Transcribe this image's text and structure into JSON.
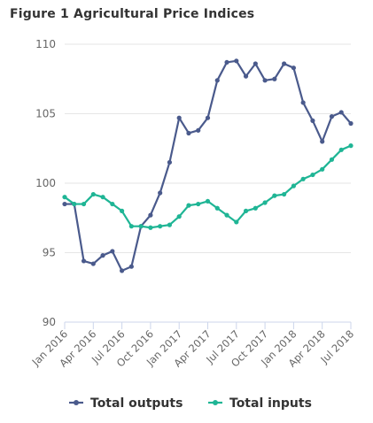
{
  "chart_data": {
    "type": "line",
    "title": "Figure 1 Agricultural Price Indices",
    "xlabel": "",
    "ylabel": "",
    "ylim": [
      90,
      110
    ],
    "yticks": [
      90,
      95,
      100,
      105,
      110
    ],
    "x": [
      "Jan 2016",
      "Feb 2016",
      "Mar 2016",
      "Apr 2016",
      "May 2016",
      "Jun 2016",
      "Jul 2016",
      "Aug 2016",
      "Sep 2016",
      "Oct 2016",
      "Nov 2016",
      "Dec 2016",
      "Jan 2017",
      "Feb 2017",
      "Mar 2017",
      "Apr 2017",
      "May 2017",
      "Jun 2017",
      "Jul 2017",
      "Aug 2017",
      "Sep 2017",
      "Oct 2017",
      "Nov 2017",
      "Dec 2017",
      "Jan 2018",
      "Feb 2018",
      "Mar 2018",
      "Apr 2018",
      "May 2018",
      "Jun 2018",
      "Jul 2018"
    ],
    "xtick_labels": [
      "Jan 2016",
      "Apr 2016",
      "Jul 2016",
      "Oct 2016",
      "Jan 2017",
      "Apr 2017",
      "Jul 2017",
      "Oct 2017",
      "Jan 2018",
      "Apr 2018",
      "Jul 2018"
    ],
    "grid": true,
    "legend_position": "bottom",
    "series": [
      {
        "name": "Total outputs",
        "color": "#4a5a8c",
        "values": [
          98.5,
          98.5,
          94.4,
          94.2,
          94.8,
          95.1,
          93.7,
          94.0,
          96.9,
          97.7,
          99.3,
          101.5,
          104.7,
          103.6,
          103.8,
          104.7,
          107.4,
          108.7,
          108.8,
          107.7,
          108.6,
          107.4,
          107.5,
          108.6,
          108.3,
          105.8,
          104.5,
          103.0,
          104.8,
          105.1,
          104.3
        ]
      },
      {
        "name": "Total inputs",
        "color": "#1fb595",
        "values": [
          99.0,
          98.5,
          98.5,
          99.2,
          99.0,
          98.5,
          98.0,
          96.9,
          96.9,
          96.8,
          96.9,
          97.0,
          97.6,
          98.4,
          98.5,
          98.7,
          98.2,
          97.7,
          97.2,
          98.0,
          98.2,
          98.6,
          99.1,
          99.2,
          99.8,
          100.3,
          100.6,
          101.0,
          101.7,
          102.4,
          102.7
        ]
      }
    ]
  }
}
